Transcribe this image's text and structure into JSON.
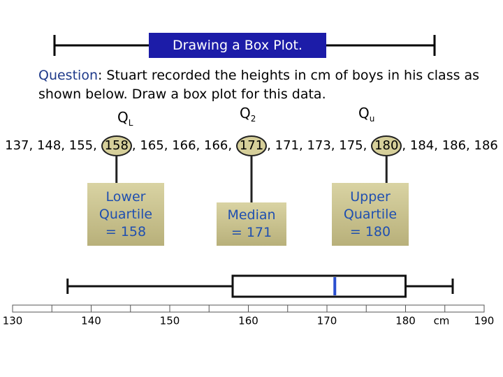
{
  "header": {
    "title": "Drawing a Box Plot."
  },
  "question": {
    "label": "Question",
    "text": ": Stuart recorded the heights in cm of boys in his class as shown below. Draw a box plot for this data."
  },
  "quartile_markers": [
    {
      "letter": "Q",
      "sub": "L"
    },
    {
      "letter": "Q",
      "sub": "2"
    },
    {
      "letter": "Q",
      "sub": "u"
    }
  ],
  "data_list": [
    137,
    148,
    155,
    158,
    165,
    166,
    166,
    171,
    171,
    173,
    175,
    180,
    184,
    186,
    186
  ],
  "boxes": [
    {
      "lines": [
        "Lower",
        "Quartile",
        "= 158"
      ]
    },
    {
      "lines": [
        "Median",
        "= 171"
      ]
    },
    {
      "lines": [
        "Upper",
        "Quartile",
        "= 180"
      ]
    }
  ],
  "chart_data": {
    "type": "box",
    "min": 137,
    "q1": 158,
    "median": 171,
    "q3": 180,
    "max": 186,
    "xlim": [
      130,
      190
    ],
    "xticks": [
      130,
      140,
      150,
      160,
      170,
      180,
      190
    ],
    "minor_xticks": [
      135,
      145,
      155,
      165,
      175,
      185
    ],
    "xlabel": "cm"
  }
}
